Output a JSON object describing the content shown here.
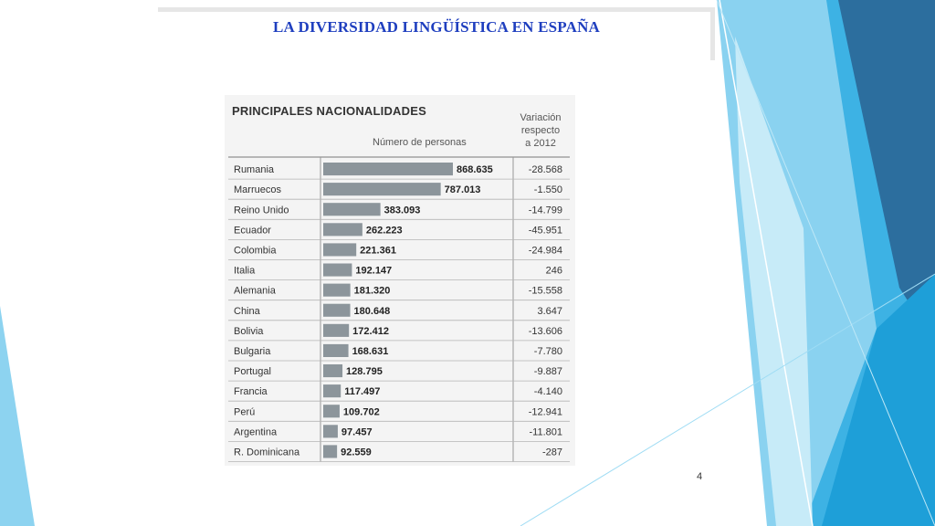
{
  "slide": {
    "title": "LA DIVERSIDAD LINGÜÍSTICA EN ESPAÑA",
    "page_number": "4",
    "colors": {
      "title": "#1f3fbf",
      "accent_dark": "#2e6fa3",
      "accent_light": "#7fd0ee",
      "accent_mid": "#39b0e2"
    }
  },
  "chart_data": {
    "type": "bar",
    "orientation": "horizontal",
    "title": "PRINCIPALES NACIONALIDADES",
    "value_label": "Número de personas",
    "change_label": "Variación respecto a 2012",
    "categories": [
      "Rumania",
      "Marruecos",
      "Reino Unido",
      "Ecuador",
      "Colombia",
      "Italia",
      "Alemania",
      "China",
      "Bolivia",
      "Bulgaria",
      "Portugal",
      "Francia",
      "Perú",
      "Argentina",
      "R. Dominicana"
    ],
    "values": [
      868635,
      787013,
      383093,
      262223,
      221361,
      192147,
      181320,
      180648,
      172412,
      168631,
      128795,
      117497,
      109702,
      97457,
      92559
    ],
    "value_labels": [
      "868.635",
      "787.013",
      "383.093",
      "262.223",
      "221.361",
      "192.147",
      "181.320",
      "180.648",
      "172.412",
      "168.631",
      "128.795",
      "117.497",
      "109.702",
      "97.457",
      "92.559"
    ],
    "changes": [
      "-28.568",
      "-1.550",
      "-14.799",
      "-45.951",
      "-24.984",
      "246",
      "-15.558",
      "3.647",
      "-13.606",
      "-7.780",
      "-9.887",
      "-4.140",
      "-12.941",
      "-11.801",
      "-287"
    ],
    "bar_color": "#8c959b",
    "grid": false,
    "legend": "none"
  }
}
